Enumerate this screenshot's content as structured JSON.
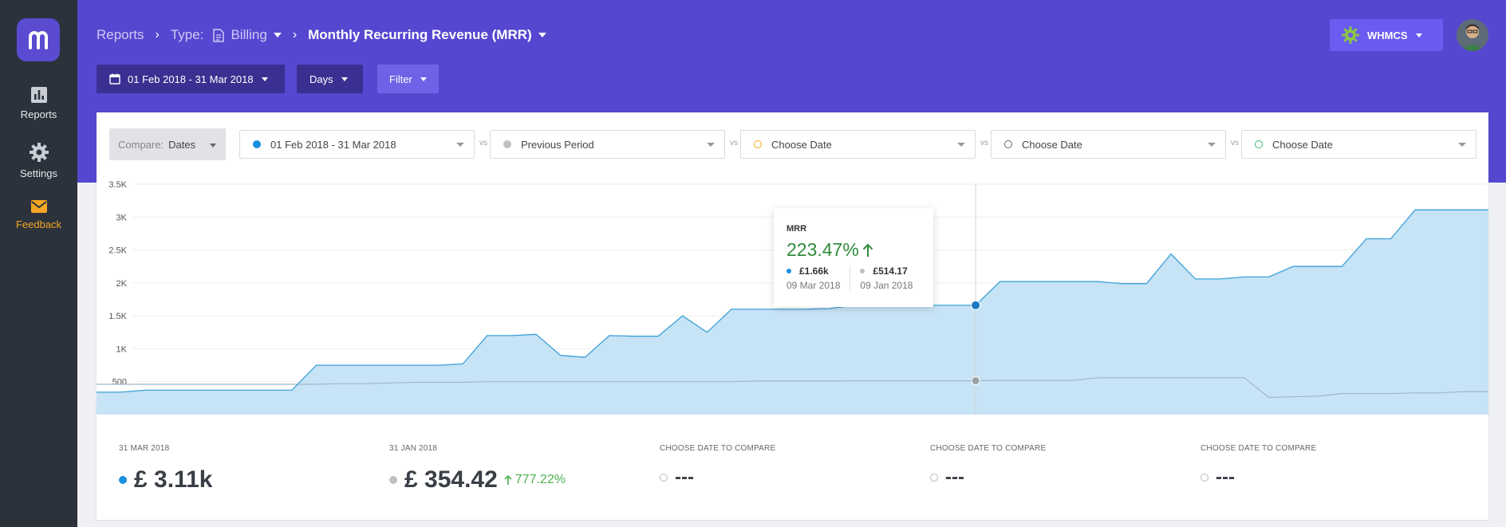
{
  "sidebar": {
    "items": [
      {
        "label": "Reports",
        "icon": "bar-chart-icon"
      },
      {
        "label": "Settings",
        "icon": "gear-icon"
      },
      {
        "label": "Feedback",
        "icon": "envelope-icon"
      }
    ]
  },
  "header": {
    "breadcrumb": {
      "root": "Reports",
      "type_label": "Type:",
      "type_value": "Billing",
      "current": "Monthly Recurring Revenue (MRR)"
    },
    "date_range_button": "01 Feb 2018 - 31 Mar 2018",
    "interval_button": "Days",
    "filter_button": "Filter",
    "account_button": "WHMCS"
  },
  "compare": {
    "mode_label": "Compare:",
    "mode_value": "Dates",
    "vs_label": "vs",
    "selectors": [
      {
        "label": "01 Feb 2018 - 31 Mar 2018",
        "color": "#1a8fe0",
        "filled": true
      },
      {
        "label": "Previous Period",
        "color": "#bfbfbf",
        "filled": true
      },
      {
        "label": "Choose Date",
        "color": "#f5a623",
        "filled": false
      },
      {
        "label": "Choose Date",
        "color": "#666666",
        "filled": false
      },
      {
        "label": "Choose Date",
        "color": "#3cb371",
        "filled": false
      }
    ]
  },
  "tooltip": {
    "title": "MRR",
    "percent": "223.47%",
    "current": {
      "value": "£1.66k",
      "date": "09 Mar 2018"
    },
    "previous": {
      "value": "£514.17",
      "date": "09 Jan 2018"
    }
  },
  "stats": [
    {
      "label": "31 MAR 2018",
      "value": "£ 3.11k",
      "change": "",
      "dot": "#1a8fe0"
    },
    {
      "label": "31 JAN 2018",
      "value": "£ 354.42",
      "change": "777.22%",
      "dot": "#bfbfbf"
    },
    {
      "label": "CHOOSE DATE TO COMPARE",
      "value": "---",
      "change": "",
      "dot": ""
    },
    {
      "label": "CHOOSE DATE TO COMPARE",
      "value": "---",
      "change": "",
      "dot": ""
    },
    {
      "label": "CHOOSE DATE TO COMPARE",
      "value": "---",
      "change": "",
      "dot": ""
    }
  ],
  "chart_data": {
    "type": "area",
    "ylim": [
      0,
      3500
    ],
    "yticks": [
      "500",
      "1K",
      "1.5K",
      "2K",
      "2.5K",
      "3K",
      "3.5K"
    ],
    "ytick_values": [
      500,
      1000,
      1500,
      2000,
      2500,
      3000,
      3500
    ],
    "grid": true,
    "highlight_index": 36,
    "series": [
      {
        "color": "#1a8fe0",
        "values": [
          340,
          340,
          370,
          370,
          370,
          370,
          370,
          370,
          370,
          750,
          750,
          750,
          750,
          750,
          750,
          770,
          1200,
          1200,
          1220,
          900,
          870,
          1200,
          1190,
          1190,
          1500,
          1250,
          1600,
          1600,
          1600,
          1600,
          1610,
          1660,
          1660,
          1660,
          1660,
          1660,
          1660,
          2020,
          2020,
          2020,
          2020,
          2020,
          1990,
          1990,
          2440,
          2060,
          2060,
          2090,
          2090,
          2250,
          2250,
          2250,
          2670,
          2670,
          3110,
          3110,
          3110,
          3110
        ]
      },
      {
        "color": "#9aa0a6",
        "values": [
          460,
          460,
          460,
          460,
          460,
          460,
          460,
          460,
          460,
          460,
          470,
          470,
          480,
          490,
          490,
          490,
          500,
          500,
          500,
          500,
          500,
          500,
          500,
          500,
          500,
          500,
          500,
          510,
          510,
          510,
          510,
          514,
          514,
          514,
          514,
          514,
          514,
          520,
          520,
          520,
          520,
          560,
          560,
          560,
          560,
          560,
          560,
          560,
          260,
          270,
          280,
          320,
          320,
          320,
          330,
          330,
          350,
          350
        ]
      }
    ]
  }
}
